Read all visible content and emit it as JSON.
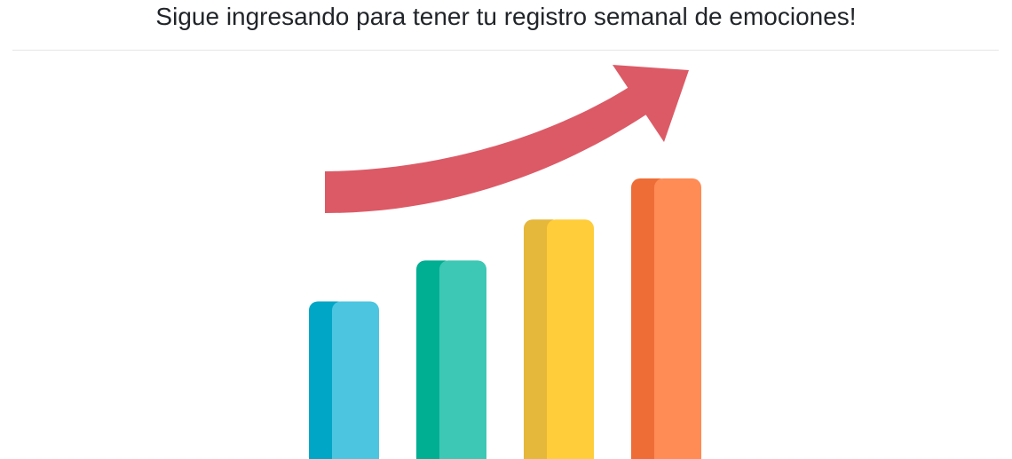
{
  "header": {
    "title": "Sigue ingresando para tener tu registro semanal de emociones!"
  },
  "illustration": {
    "icon": "growth-chart-illustration",
    "bars": [
      {
        "level": 0.5,
        "front_color": "#4CC5E0",
        "shade_color": "#00A6C6"
      },
      {
        "level": 0.63,
        "front_color": "#3CC8B4",
        "shade_color": "#00AE92"
      },
      {
        "level": 0.76,
        "front_color": "#FFCD3A",
        "shade_color": "#E5B73A"
      },
      {
        "level": 0.89,
        "front_color": "#FF8B55",
        "shade_color": "#EE6D36"
      }
    ],
    "arrow_color": "#DC5A66"
  }
}
